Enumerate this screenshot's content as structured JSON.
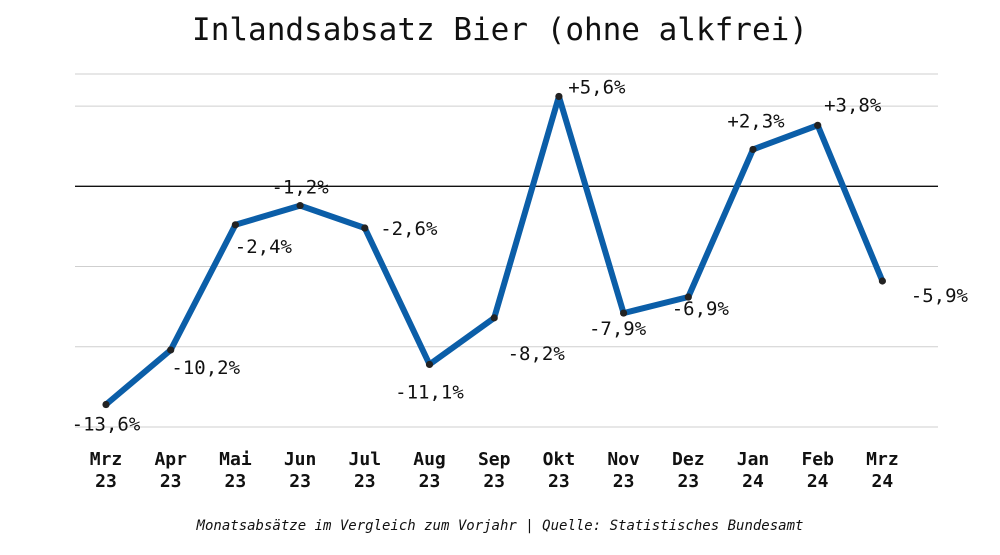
{
  "chart_data": {
    "type": "line",
    "title": "Inlandsabsatz Bier (ohne alkfrei)",
    "categories": [
      [
        "Mrz",
        "23"
      ],
      [
        "Apr",
        "23"
      ],
      [
        "Mai",
        "23"
      ],
      [
        "Jun",
        "23"
      ],
      [
        "Jul",
        "23"
      ],
      [
        "Aug",
        "23"
      ],
      [
        "Sep",
        "23"
      ],
      [
        "Okt",
        "23"
      ],
      [
        "Nov",
        "23"
      ],
      [
        "Dez",
        "23"
      ],
      [
        "Jan",
        "24"
      ],
      [
        "Feb",
        "24"
      ],
      [
        "Mrz",
        "24"
      ]
    ],
    "values": [
      -13.6,
      -10.2,
      -2.4,
      -1.2,
      -2.6,
      -11.1,
      -8.2,
      5.6,
      -7.9,
      -6.9,
      2.3,
      3.8,
      -5.9
    ],
    "data_labels": [
      "-13,6%",
      "-10,2%",
      "-2,4%",
      "-1,2%",
      "-2,6%",
      "-11,1%",
      "-8,2%",
      "+5,6%",
      "-7,9%",
      "-6,9%",
      "+2,3%",
      "+3,8%",
      "-5,9%"
    ],
    "ylim": [
      -15,
      7
    ],
    "grid": true,
    "zero_line": true,
    "line_color": "#0b5ea8"
  },
  "footer": {
    "note": "Monatsabsätze im Vergleich zum Vorjahr",
    "separator": "|",
    "source": "Quelle: Statistisches Bundesamt"
  }
}
